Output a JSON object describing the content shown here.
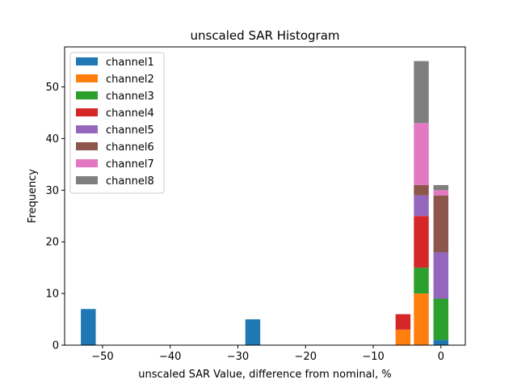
{
  "chart_data": {
    "type": "bar",
    "stacked": true,
    "title": "unscaled SAR Histogram",
    "xlabel": "unscaled SAR Value, difference from nominal, %",
    "ylabel": "Frequency",
    "xlim": [
      -55.6,
      3.6
    ],
    "ylim": [
      0,
      57.75
    ],
    "xticks": [
      -50,
      -40,
      -30,
      -20,
      -10,
      0
    ],
    "xtick_labels": [
      "−50",
      "−40",
      "−30",
      "−20",
      "−10",
      "0"
    ],
    "yticks": [
      0,
      10,
      20,
      30,
      40,
      50
    ],
    "ytick_labels": [
      "0",
      "10",
      "20",
      "30",
      "40",
      "50"
    ],
    "bar_width": 2.2,
    "categories": [
      -52.1,
      -27.8,
      -5.6,
      -2.9,
      0.0
    ],
    "series": [
      {
        "name": "channel1",
        "color": "#1f77b4",
        "values": [
          7,
          5,
          0,
          0,
          1
        ]
      },
      {
        "name": "channel2",
        "color": "#ff7f0e",
        "values": [
          0,
          0,
          3,
          10,
          0
        ]
      },
      {
        "name": "channel3",
        "color": "#2ca02c",
        "values": [
          0,
          0,
          0,
          5,
          8
        ]
      },
      {
        "name": "channel4",
        "color": "#d62728",
        "values": [
          0,
          0,
          3,
          10,
          0
        ]
      },
      {
        "name": "channel5",
        "color": "#9467bd",
        "values": [
          0,
          0,
          0,
          4,
          9
        ]
      },
      {
        "name": "channel6",
        "color": "#8c564b",
        "values": [
          0,
          0,
          0,
          2,
          11
        ]
      },
      {
        "name": "channel7",
        "color": "#e377c2",
        "values": [
          0,
          0,
          0,
          12,
          1
        ]
      },
      {
        "name": "channel8",
        "color": "#7f7f7f",
        "values": [
          0,
          0,
          0,
          12,
          1
        ]
      }
    ],
    "legend_position": "top-left"
  }
}
